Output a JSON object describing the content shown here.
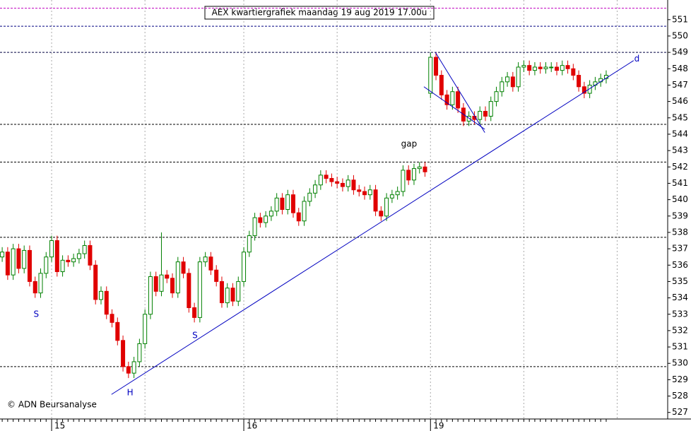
{
  "chart_data": {
    "type": "candlestick",
    "title": "AEX kwartiergrafiek maandag 19 aug 2019 17.00u",
    "source": "© ADN Beursanalyse",
    "categories": [
      null,
      null,
      null,
      null,
      null,
      null,
      null,
      null,
      null,
      "15",
      null,
      null,
      null,
      null,
      null,
      null,
      null,
      null,
      null,
      null,
      null,
      null,
      null,
      null,
      null,
      null,
      null,
      null,
      null,
      null,
      null,
      null,
      null,
      null,
      null,
      null,
      null,
      null,
      null,
      null,
      null,
      null,
      null,
      null,
      "16",
      null,
      null,
      null,
      null,
      null,
      null,
      null,
      null,
      null,
      null,
      null,
      null,
      null,
      null,
      null,
      null,
      null,
      null,
      null,
      null,
      null,
      null,
      null,
      null,
      null,
      null,
      null,
      null,
      null,
      null,
      null,
      null,
      null,
      "19",
      null,
      null,
      null,
      null,
      null,
      null,
      null,
      null,
      null,
      null,
      null,
      null,
      null,
      null,
      null,
      null,
      null,
      null,
      null,
      null,
      null,
      null,
      null,
      null,
      null,
      null,
      null,
      null,
      null,
      null,
      null,
      null
    ],
    "open": [
      536.5,
      536.8,
      535.4,
      537.0,
      535.8,
      536.9,
      535.0,
      534.3,
      535.5,
      536.5,
      537.5,
      535.6,
      536.3,
      536.2,
      536.4,
      536.7,
      537.2,
      536.0,
      533.9,
      534.4,
      533.0,
      532.5,
      531.4,
      529.8,
      529.4,
      530.1,
      531.2,
      533.0,
      535.3,
      534.4,
      535.4,
      535.2,
      534.3,
      536.2,
      535.5,
      533.4,
      532.8,
      536.2,
      536.5,
      535.7,
      535.0,
      533.7,
      534.6,
      533.8,
      535.0,
      536.8,
      537.8,
      538.9,
      538.6,
      539.0,
      539.3,
      540.1,
      539.4,
      540.3,
      539.2,
      538.7,
      539.9,
      540.4,
      540.9,
      541.5,
      541.3,
      541.1,
      541.0,
      540.8,
      541.2,
      540.6,
      540.5,
      540.3,
      540.6,
      539.3,
      539.0,
      540.1,
      540.3,
      540.5,
      541.8,
      541.2,
      541.9,
      542.0,
      546.5,
      548.7,
      547.6,
      546.4,
      545.8,
      546.6,
      545.6,
      544.8,
      545.1,
      544.9,
      545.4,
      545.1,
      546.0,
      546.6,
      547.2,
      547.5,
      546.9,
      548.1,
      548.2,
      547.9,
      548.1,
      548.0,
      548.1,
      548.1,
      547.9,
      548.2,
      548.0,
      547.6,
      546.9,
      546.5,
      547.0,
      547.2,
      547.4
    ],
    "high": [
      537.1,
      537.1,
      537.3,
      537.3,
      537.2,
      537.2,
      535.3,
      535.8,
      536.8,
      537.8,
      537.8,
      536.6,
      536.6,
      536.7,
      537.0,
      537.5,
      537.5,
      536.3,
      534.7,
      534.7,
      533.3,
      532.8,
      531.7,
      530.1,
      530.4,
      531.5,
      533.3,
      535.6,
      535.6,
      538.0,
      535.7,
      535.5,
      536.5,
      536.5,
      535.8,
      533.7,
      536.5,
      536.8,
      536.8,
      536.0,
      535.3,
      534.9,
      534.9,
      535.3,
      537.1,
      538.1,
      539.2,
      539.2,
      539.3,
      539.6,
      540.4,
      540.4,
      540.6,
      540.6,
      539.5,
      540.2,
      540.7,
      541.2,
      541.8,
      541.8,
      541.6,
      541.4,
      541.3,
      541.5,
      541.5,
      540.9,
      540.8,
      540.9,
      540.9,
      539.6,
      540.4,
      540.6,
      540.8,
      542.1,
      542.1,
      542.2,
      542.3,
      542.3,
      549.0,
      549.0,
      547.9,
      546.7,
      546.9,
      546.9,
      545.9,
      545.4,
      545.4,
      545.7,
      545.7,
      546.3,
      546.9,
      547.5,
      547.8,
      547.8,
      548.4,
      548.5,
      548.5,
      548.4,
      548.4,
      548.4,
      548.4,
      548.4,
      548.5,
      548.5,
      548.3,
      547.9,
      547.2,
      547.3,
      547.5,
      547.7,
      547.9
    ],
    "low": [
      536.2,
      535.1,
      535.1,
      535.5,
      535.5,
      534.7,
      534.0,
      534.0,
      535.2,
      536.2,
      535.3,
      535.3,
      535.9,
      535.9,
      536.1,
      536.4,
      535.7,
      533.6,
      533.6,
      532.7,
      532.2,
      531.1,
      529.5,
      529.1,
      529.1,
      529.8,
      530.9,
      532.7,
      534.1,
      534.1,
      534.9,
      534.0,
      534.0,
      535.2,
      533.1,
      532.5,
      532.5,
      535.9,
      535.4,
      534.7,
      533.4,
      533.4,
      533.5,
      533.5,
      534.7,
      536.5,
      537.5,
      538.3,
      538.3,
      538.7,
      539.0,
      539.1,
      539.1,
      538.9,
      538.4,
      538.4,
      539.6,
      540.1,
      540.6,
      541.0,
      540.8,
      540.7,
      540.5,
      540.5,
      540.3,
      540.2,
      540.0,
      540.0,
      539.0,
      538.7,
      538.7,
      539.8,
      540.0,
      540.2,
      540.9,
      540.9,
      541.6,
      541.4,
      546.2,
      547.3,
      546.1,
      545.5,
      545.5,
      545.3,
      544.5,
      544.5,
      544.6,
      544.6,
      544.8,
      544.8,
      545.7,
      546.3,
      546.9,
      546.6,
      546.6,
      547.8,
      547.6,
      547.6,
      547.7,
      547.7,
      547.8,
      547.6,
      547.6,
      547.7,
      547.3,
      546.6,
      546.2,
      546.2,
      546.7,
      546.9,
      547.1
    ],
    "close": [
      536.8,
      535.4,
      537.0,
      535.8,
      536.9,
      535.0,
      534.3,
      535.5,
      536.5,
      537.5,
      535.6,
      536.3,
      536.2,
      536.4,
      536.7,
      537.2,
      536.0,
      533.9,
      534.4,
      533.0,
      532.5,
      531.4,
      529.8,
      529.4,
      530.1,
      531.2,
      533.0,
      535.3,
      534.4,
      535.4,
      535.2,
      534.3,
      536.2,
      535.5,
      533.4,
      532.8,
      536.2,
      536.5,
      535.7,
      535.0,
      533.7,
      534.6,
      533.8,
      535.0,
      536.8,
      537.8,
      538.9,
      538.6,
      539.0,
      539.3,
      540.1,
      539.4,
      540.3,
      539.2,
      538.7,
      539.9,
      540.4,
      540.9,
      541.5,
      541.3,
      541.1,
      541.0,
      540.8,
      541.2,
      540.6,
      540.5,
      540.3,
      540.6,
      539.3,
      539.0,
      540.1,
      540.3,
      540.5,
      541.8,
      541.2,
      541.9,
      542.0,
      541.7,
      548.7,
      547.6,
      546.4,
      545.8,
      546.6,
      545.6,
      544.8,
      545.1,
      544.9,
      545.4,
      545.1,
      546.0,
      546.6,
      547.2,
      547.5,
      546.9,
      548.1,
      548.2,
      547.9,
      548.1,
      548.0,
      548.1,
      548.1,
      547.9,
      548.2,
      548.0,
      547.6,
      546.9,
      546.5,
      547.0,
      547.2,
      547.4,
      547.6
    ],
    "up_color": "#008000",
    "down_color": "#e00000",
    "xlim": [
      -0.4,
      121.2
    ],
    "xgrid": [
      9,
      26,
      44,
      61,
      78,
      95,
      112
    ],
    "ylim": [
      526.6,
      552.2
    ],
    "yticks": [
      527,
      528,
      529,
      530,
      531,
      532,
      533,
      534,
      535,
      536,
      537,
      538,
      539,
      540,
      541,
      542,
      543,
      544,
      545,
      546,
      547,
      548,
      549,
      550,
      551
    ],
    "hlines": [
      {
        "value": 551.7,
        "color": "#c000c0"
      },
      {
        "value": 550.6,
        "color": "#000080"
      },
      {
        "value": 549.0,
        "color": "#000040"
      },
      {
        "value": 544.6,
        "color": "#000000"
      },
      {
        "value": 542.3,
        "color": "#000000"
      },
      {
        "value": 537.7,
        "color": "#000000"
      },
      {
        "value": 529.8,
        "color": "#000000"
      }
    ],
    "trendlines": [
      {
        "x": [
          19.9,
          115
        ],
        "y": [
          528.1,
          548.5
        ],
        "color": "#0000c0"
      },
      {
        "x": [
          78.9,
          87.9
        ],
        "y": [
          549.0,
          544.1
        ],
        "color": "#0000c0"
      },
      {
        "x": [
          76.8,
          87.9
        ],
        "y": [
          546.9,
          544.3
        ],
        "color": "#0000c0"
      }
    ],
    "annotations": [
      {
        "text": "S",
        "x": 6.2,
        "y": 533.0,
        "color": "#0000c0"
      },
      {
        "text": "H",
        "x": 23.3,
        "y": 528.2,
        "color": "#0000c0"
      },
      {
        "text": "S",
        "x": 35.1,
        "y": 531.7,
        "color": "#0000c0"
      },
      {
        "text": "gap",
        "x": 74.1,
        "y": 543.4,
        "color": "#000000"
      },
      {
        "text": "d",
        "x": 115.6,
        "y": 548.6,
        "color": "#0000c0"
      }
    ]
  }
}
